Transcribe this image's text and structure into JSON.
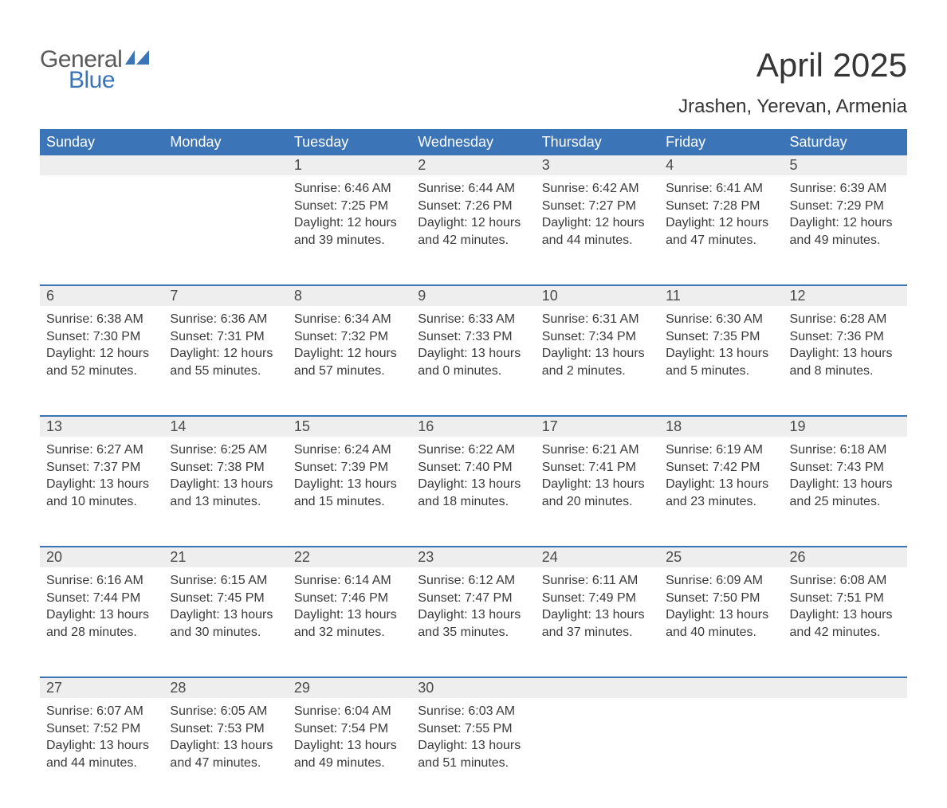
{
  "logo": {
    "word1": "General",
    "word2": "Blue",
    "icon_color": "#3b74b7",
    "text1_color": "#5a5a5a",
    "text2_color": "#3b74b7"
  },
  "title": "April 2025",
  "location": "Jrashen, Yerevan, Armenia",
  "colors": {
    "header_bg": "#3b74b7",
    "header_text": "#ffffff",
    "daynum_bg": "#eeeeee",
    "row_divider": "#3b74b7",
    "body_text": "#3a3a3a"
  },
  "day_headers": [
    "Sunday",
    "Monday",
    "Tuesday",
    "Wednesday",
    "Thursday",
    "Friday",
    "Saturday"
  ],
  "weeks": [
    [
      null,
      null,
      {
        "n": "1",
        "sunrise": "6:46 AM",
        "sunset": "7:25 PM",
        "dl_h": "12",
        "dl_m": "39"
      },
      {
        "n": "2",
        "sunrise": "6:44 AM",
        "sunset": "7:26 PM",
        "dl_h": "12",
        "dl_m": "42"
      },
      {
        "n": "3",
        "sunrise": "6:42 AM",
        "sunset": "7:27 PM",
        "dl_h": "12",
        "dl_m": "44"
      },
      {
        "n": "4",
        "sunrise": "6:41 AM",
        "sunset": "7:28 PM",
        "dl_h": "12",
        "dl_m": "47"
      },
      {
        "n": "5",
        "sunrise": "6:39 AM",
        "sunset": "7:29 PM",
        "dl_h": "12",
        "dl_m": "49"
      }
    ],
    [
      {
        "n": "6",
        "sunrise": "6:38 AM",
        "sunset": "7:30 PM",
        "dl_h": "12",
        "dl_m": "52"
      },
      {
        "n": "7",
        "sunrise": "6:36 AM",
        "sunset": "7:31 PM",
        "dl_h": "12",
        "dl_m": "55"
      },
      {
        "n": "8",
        "sunrise": "6:34 AM",
        "sunset": "7:32 PM",
        "dl_h": "12",
        "dl_m": "57"
      },
      {
        "n": "9",
        "sunrise": "6:33 AM",
        "sunset": "7:33 PM",
        "dl_h": "13",
        "dl_m": "0"
      },
      {
        "n": "10",
        "sunrise": "6:31 AM",
        "sunset": "7:34 PM",
        "dl_h": "13",
        "dl_m": "2"
      },
      {
        "n": "11",
        "sunrise": "6:30 AM",
        "sunset": "7:35 PM",
        "dl_h": "13",
        "dl_m": "5"
      },
      {
        "n": "12",
        "sunrise": "6:28 AM",
        "sunset": "7:36 PM",
        "dl_h": "13",
        "dl_m": "8"
      }
    ],
    [
      {
        "n": "13",
        "sunrise": "6:27 AM",
        "sunset": "7:37 PM",
        "dl_h": "13",
        "dl_m": "10"
      },
      {
        "n": "14",
        "sunrise": "6:25 AM",
        "sunset": "7:38 PM",
        "dl_h": "13",
        "dl_m": "13"
      },
      {
        "n": "15",
        "sunrise": "6:24 AM",
        "sunset": "7:39 PM",
        "dl_h": "13",
        "dl_m": "15"
      },
      {
        "n": "16",
        "sunrise": "6:22 AM",
        "sunset": "7:40 PM",
        "dl_h": "13",
        "dl_m": "18"
      },
      {
        "n": "17",
        "sunrise": "6:21 AM",
        "sunset": "7:41 PM",
        "dl_h": "13",
        "dl_m": "20"
      },
      {
        "n": "18",
        "sunrise": "6:19 AM",
        "sunset": "7:42 PM",
        "dl_h": "13",
        "dl_m": "23"
      },
      {
        "n": "19",
        "sunrise": "6:18 AM",
        "sunset": "7:43 PM",
        "dl_h": "13",
        "dl_m": "25"
      }
    ],
    [
      {
        "n": "20",
        "sunrise": "6:16 AM",
        "sunset": "7:44 PM",
        "dl_h": "13",
        "dl_m": "28"
      },
      {
        "n": "21",
        "sunrise": "6:15 AM",
        "sunset": "7:45 PM",
        "dl_h": "13",
        "dl_m": "30"
      },
      {
        "n": "22",
        "sunrise": "6:14 AM",
        "sunset": "7:46 PM",
        "dl_h": "13",
        "dl_m": "32"
      },
      {
        "n": "23",
        "sunrise": "6:12 AM",
        "sunset": "7:47 PM",
        "dl_h": "13",
        "dl_m": "35"
      },
      {
        "n": "24",
        "sunrise": "6:11 AM",
        "sunset": "7:49 PM",
        "dl_h": "13",
        "dl_m": "37"
      },
      {
        "n": "25",
        "sunrise": "6:09 AM",
        "sunset": "7:50 PM",
        "dl_h": "13",
        "dl_m": "40"
      },
      {
        "n": "26",
        "sunrise": "6:08 AM",
        "sunset": "7:51 PM",
        "dl_h": "13",
        "dl_m": "42"
      }
    ],
    [
      {
        "n": "27",
        "sunrise": "6:07 AM",
        "sunset": "7:52 PM",
        "dl_h": "13",
        "dl_m": "44"
      },
      {
        "n": "28",
        "sunrise": "6:05 AM",
        "sunset": "7:53 PM",
        "dl_h": "13",
        "dl_m": "47"
      },
      {
        "n": "29",
        "sunrise": "6:04 AM",
        "sunset": "7:54 PM",
        "dl_h": "13",
        "dl_m": "49"
      },
      {
        "n": "30",
        "sunrise": "6:03 AM",
        "sunset": "7:55 PM",
        "dl_h": "13",
        "dl_m": "51"
      },
      null,
      null,
      null
    ]
  ],
  "labels": {
    "sunrise": "Sunrise:",
    "sunset": "Sunset:",
    "daylight": "Daylight:",
    "hours": "hours",
    "and": "and",
    "minutes": "minutes."
  },
  "typography": {
    "title_fontsize": 42,
    "location_fontsize": 24,
    "header_fontsize": 18,
    "daynum_fontsize": 18,
    "body_fontsize": 16
  }
}
